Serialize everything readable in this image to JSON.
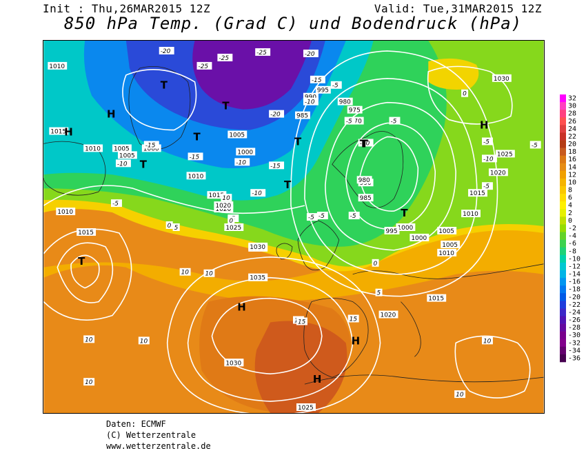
{
  "header": {
    "init": "Init : Thu,26MAR2015 12Z",
    "valid": "Valid: Tue,31MAR2015 12Z",
    "title": "850 hPa Temp. (Grad C) und Bodendruck (hPa)"
  },
  "footer": {
    "line1": "Daten: ECMWF",
    "line2": "(C) Wetterzentrale",
    "line3": "www.wetterzentrale.de"
  },
  "legend": {
    "labels": [
      "32",
      "30",
      "28",
      "26",
      "24",
      "22",
      "20",
      "18",
      "16",
      "14",
      "12",
      "10",
      "8",
      "6",
      "4",
      "2",
      "0",
      "-2",
      "-4",
      "-6",
      "-8",
      "-10",
      "-12",
      "-14",
      "-16",
      "-18",
      "-20",
      "-22",
      "-24",
      "-26",
      "-28",
      "-30",
      "-32",
      "-34",
      "-36"
    ],
    "colors": [
      "#ff00ff",
      "#ff40c0",
      "#ff4080",
      "#ff5050",
      "#e04040",
      "#c83228",
      "#b43c14",
      "#c85a1e",
      "#dc7814",
      "#e68c14",
      "#f0a000",
      "#f5b400",
      "#fac800",
      "#ffdc00",
      "#fff000",
      "#e6f000",
      "#c0e000",
      "#96dc00",
      "#64d228",
      "#3cd250",
      "#1ed278",
      "#00d2aa",
      "#00c8d2",
      "#00b4e6",
      "#0096f0",
      "#0078f0",
      "#005ae6",
      "#1e3cdc",
      "#3c28c8",
      "#5014b4",
      "#640aa0",
      "#78008c",
      "#82008c",
      "#64006e",
      "#460050"
    ]
  },
  "pressure_labels": [
    "1010",
    "1015",
    "1010",
    "1005",
    "1000",
    "995",
    "990",
    "985",
    "980",
    "975",
    "970",
    "1005",
    "1000",
    "1010",
    "1015",
    "1020",
    "1025",
    "1030",
    "1035",
    "1030",
    "1025",
    "1020",
    "1015",
    "1010",
    "1005",
    "1000",
    "995",
    "990",
    "985",
    "980",
    "1030",
    "1025",
    "1020",
    "1015",
    "1010",
    "1005",
    "1000",
    "1005",
    "1010",
    "1015",
    "1020",
    "1030",
    "1035",
    "1030",
    "1025"
  ],
  "temp_labels": [
    "-20",
    "-25",
    "-25",
    "-25",
    "-20",
    "-15",
    "-10",
    "-5",
    "-15",
    "-10",
    "-5",
    "0",
    "5",
    "10",
    "15",
    "10",
    "10",
    "-5",
    "-10",
    "-15",
    "-20",
    "-15",
    "-10",
    "-5",
    "0",
    "5",
    "-5",
    "-10",
    "-5",
    "-5",
    "0",
    "-5",
    "-10",
    "-5",
    "-5",
    "0",
    "5",
    "10",
    "15",
    "10",
    "10",
    "10",
    "10",
    "15",
    "-5"
  ],
  "centers": [
    "H",
    "H",
    "T",
    "T",
    "T",
    "T",
    "T",
    "T",
    "T",
    "T",
    "H",
    "H",
    "H",
    "T",
    "H",
    "T"
  ]
}
